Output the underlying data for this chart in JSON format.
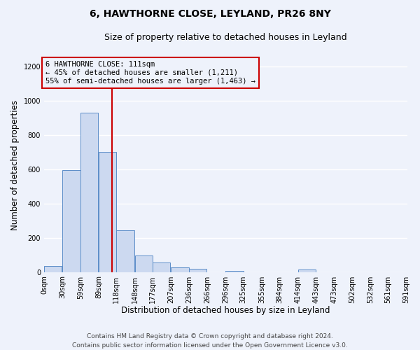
{
  "title": "6, HAWTHORNE CLOSE, LEYLAND, PR26 8NY",
  "subtitle": "Size of property relative to detached houses in Leyland",
  "xlabel": "Distribution of detached houses by size in Leyland",
  "ylabel": "Number of detached properties",
  "bar_left_edges": [
    0,
    30,
    59,
    89,
    118,
    148,
    177,
    207,
    236,
    266,
    296,
    325,
    355,
    384,
    414,
    443,
    473,
    502,
    532,
    561
  ],
  "bar_heights": [
    35,
    595,
    930,
    700,
    245,
    95,
    55,
    25,
    20,
    0,
    5,
    0,
    0,
    0,
    15,
    0,
    0,
    0,
    0,
    0
  ],
  "bin_width": 29,
  "bar_face_color": "#ccd9f0",
  "bar_edge_color": "#5b8dc8",
  "vline_x": 111,
  "vline_color": "#cc0000",
  "ylim": [
    0,
    1250
  ],
  "yticks": [
    0,
    200,
    400,
    600,
    800,
    1000,
    1200
  ],
  "xtick_labels": [
    "0sqm",
    "30sqm",
    "59sqm",
    "89sqm",
    "118sqm",
    "148sqm",
    "177sqm",
    "207sqm",
    "236sqm",
    "266sqm",
    "296sqm",
    "325sqm",
    "355sqm",
    "384sqm",
    "414sqm",
    "443sqm",
    "473sqm",
    "502sqm",
    "532sqm",
    "561sqm",
    "591sqm"
  ],
  "annotation_line1": "6 HAWTHORNE CLOSE: 111sqm",
  "annotation_line2": "← 45% of detached houses are smaller (1,211)",
  "annotation_line3": "55% of semi-detached houses are larger (1,463) →",
  "annotation_box_color": "#cc0000",
  "footer_line1": "Contains HM Land Registry data © Crown copyright and database right 2024.",
  "footer_line2": "Contains public sector information licensed under the Open Government Licence v3.0.",
  "bg_color": "#eef2fb",
  "grid_color": "#ffffff",
  "title_fontsize": 10,
  "subtitle_fontsize": 9,
  "axis_label_fontsize": 8.5,
  "tick_fontsize": 7,
  "footer_fontsize": 6.5,
  "annot_fontsize": 7.5
}
